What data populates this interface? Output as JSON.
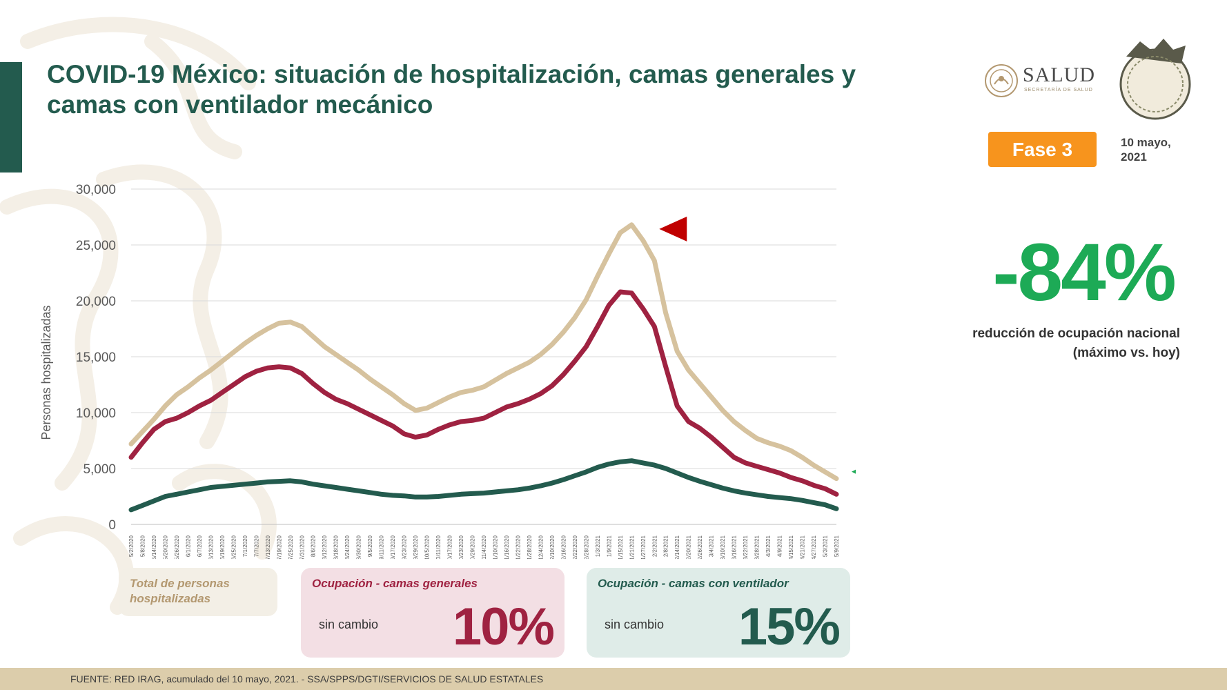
{
  "header": {
    "title": "COVID-19 México: situación de hospitalización, camas generales y camas con ventilador mecánico",
    "logo_text": "SALUD",
    "logo_subtext": "SECRETARÍA DE SALUD",
    "phase_label": "Fase 3",
    "date_line1": "10 mayo,",
    "date_line2": "2021"
  },
  "kpi": {
    "value": "-84%",
    "desc_line1": "reducción de ocupación nacional",
    "desc_line2": "(máximo vs. hoy)"
  },
  "cards": {
    "total": {
      "title": "Total de personas hospitalizadas"
    },
    "general": {
      "title": "Ocupación - camas generales",
      "status": "sin cambio",
      "value": "10%"
    },
    "ventilator": {
      "title": "Ocupación - camas con ventilador",
      "status": "sin cambio",
      "value": "15%"
    }
  },
  "footer": {
    "source": "FUENTE: RED IRAG, acumulado del 10 mayo, 2021. -  SSA/SPPS/DGTI/SERVICIOS DE SALUD ESTATALES"
  },
  "colors": {
    "primary_green": "#235b4e",
    "total": "#d6c29e",
    "general": "#9f2241",
    "ventilator": "#235b4e",
    "kpi": "#1daa56",
    "phase": "#f7941d",
    "peak_marker": "#c00000",
    "current_marker": "#1daa56"
  },
  "chart_data": {
    "type": "line",
    "ylabel": "Personas hospitalizadas",
    "xlabel": "",
    "ylim": [
      0,
      30000
    ],
    "ytick_labels": [
      "0",
      "5,000",
      "10,000",
      "15,000",
      "20,000",
      "25,000",
      "30,000"
    ],
    "grid": true,
    "x": [
      "5/2/2020",
      "5/8/2020",
      "5/14/2020",
      "5/20/2020",
      "5/26/2020",
      "6/1/2020",
      "6/7/2020",
      "6/13/2020",
      "6/19/2020",
      "6/25/2020",
      "7/1/2020",
      "7/7/2020",
      "7/13/2020",
      "7/19/2020",
      "7/25/2020",
      "7/31/2020",
      "8/6/2020",
      "8/12/2020",
      "8/18/2020",
      "8/24/2020",
      "8/30/2020",
      "9/5/2020",
      "9/11/2020",
      "9/17/2020",
      "9/23/2020",
      "9/29/2020",
      "10/5/2020",
      "10/11/2020",
      "10/17/2020",
      "10/23/2020",
      "10/29/2020",
      "11/4/2020",
      "11/10/2020",
      "11/16/2020",
      "11/22/2020",
      "11/28/2020",
      "12/4/2020",
      "12/10/2020",
      "12/16/2020",
      "12/22/2020",
      "12/28/2020",
      "1/3/2021",
      "1/9/2021",
      "1/15/2021",
      "1/21/2021",
      "1/27/2021",
      "2/2/2021",
      "2/8/2021",
      "2/14/2021",
      "2/20/2021",
      "2/26/2021",
      "3/4/2021",
      "3/10/2021",
      "3/16/2021",
      "3/22/2021",
      "3/28/2021",
      "4/3/2021",
      "4/9/2021",
      "4/15/2021",
      "4/21/2021",
      "4/27/2021",
      "5/3/2021",
      "5/9/2021"
    ],
    "series": [
      {
        "values": [
          7200,
          8300,
          9400,
          10600,
          11600,
          12300,
          13100,
          13800,
          14600,
          15400,
          16200,
          16900,
          17500,
          18000,
          18100,
          17700,
          16800,
          15900,
          15200,
          14500,
          13800,
          13000,
          12300,
          11600,
          10800,
          10200,
          10400,
          10900,
          11400,
          11800,
          12000,
          12300,
          12900,
          13500,
          14000,
          14500,
          15200,
          16100,
          17200,
          18500,
          20100,
          22200,
          24200,
          26100,
          26800,
          25400,
          23600,
          18900,
          15500,
          13800,
          12600,
          11400,
          10200,
          9200,
          8400,
          7700,
          7300,
          7000,
          6600,
          6000,
          5300,
          4700,
          4100
        ]
      },
      {
        "values": [
          6000,
          7300,
          8500,
          9200,
          9500,
          10000,
          10600,
          11100,
          11800,
          12500,
          13200,
          13700,
          14000,
          14100,
          14000,
          13500,
          12600,
          11800,
          11200,
          10800,
          10300,
          9800,
          9300,
          8800,
          8100,
          7800,
          8000,
          8500,
          8900,
          9200,
          9300,
          9500,
          10000,
          10500,
          10800,
          11200,
          11700,
          12400,
          13400,
          14600,
          15900,
          17700,
          19600,
          20800,
          20700,
          19300,
          17700,
          14100,
          10600,
          9200,
          8600,
          7800,
          6900,
          6000,
          5500,
          5200,
          4900,
          4600,
          4200,
          3900,
          3500,
          3200,
          2700
        ]
      },
      {
        "values": [
          1300,
          1700,
          2100,
          2500,
          2700,
          2900,
          3100,
          3300,
          3400,
          3500,
          3600,
          3700,
          3800,
          3850,
          3900,
          3800,
          3600,
          3450,
          3300,
          3150,
          3000,
          2850,
          2700,
          2600,
          2550,
          2450,
          2450,
          2500,
          2600,
          2700,
          2750,
          2800,
          2900,
          3000,
          3100,
          3250,
          3450,
          3700,
          4000,
          4350,
          4700,
          5100,
          5400,
          5600,
          5700,
          5500,
          5300,
          5000,
          4600,
          4200,
          3850,
          3550,
          3250,
          3000,
          2800,
          2650,
          2500,
          2400,
          2300,
          2150,
          1950,
          1750,
          1400
        ]
      }
    ]
  }
}
